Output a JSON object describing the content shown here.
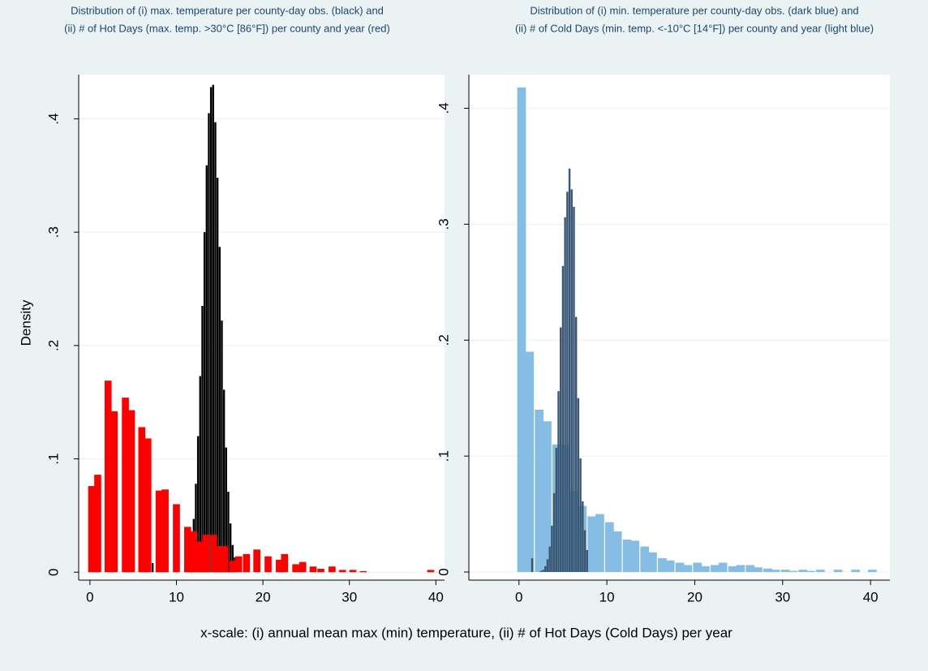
{
  "chart_data": [
    {
      "type": "bar",
      "title": "Distribution of (i) max. temperature per county-day obs. (black) and",
      "subtitle": "(ii) # of Hot Days (max. temp. >30°C [86°F]) per county and year (red)",
      "ylabel": "Density",
      "xlim": [
        -1.3,
        41.0
      ],
      "ylim": [
        -0.007,
        0.439
      ],
      "xticks": [
        0,
        10,
        20,
        30,
        40
      ],
      "yticks": [
        0,
        {
          "value": 0.1,
          "label": ".1"
        },
        {
          "value": 0.2,
          "label": ".2"
        },
        {
          "value": 0.3,
          "label": ".3"
        },
        {
          "value": 0.4,
          "label": ".4"
        }
      ],
      "grid": true,
      "series": [
        {
          "color": "#000000",
          "x": [
            7.25,
            11.0,
            11.25,
            11.5,
            11.75,
            12.0,
            12.25,
            12.5,
            12.75,
            13.0,
            13.25,
            13.5,
            13.75,
            14.0,
            14.25,
            14.5,
            14.75,
            15.0,
            15.25,
            15.5,
            15.75,
            16.0,
            16.25,
            16.5,
            16.75
          ],
          "values": [
            0.008,
            0.004,
            0.007,
            0.015,
            0.027,
            0.047,
            0.078,
            0.12,
            0.173,
            0.235,
            0.3,
            0.359,
            0.405,
            0.428,
            0.43,
            0.397,
            0.348,
            0.287,
            0.222,
            0.161,
            0.11,
            0.071,
            0.043,
            0.024,
            0.013
          ]
        },
        {
          "color": "#ff0000",
          "x": [
            0.2,
            0.9,
            2.1,
            2.8,
            4.1,
            4.8,
            6.0,
            6.7,
            8.0,
            8.7,
            10.0,
            11.3,
            12.0,
            12.8,
            13.4,
            14.3,
            15.0,
            15.6,
            16.5,
            17.2,
            18.1,
            19.3,
            20.6,
            21.9,
            22.5,
            23.8,
            24.6,
            25.8,
            26.7,
            28.0,
            29.2,
            30.4,
            31.6,
            39.4
          ],
          "values": [
            0.076,
            0.086,
            0.169,
            0.142,
            0.154,
            0.143,
            0.128,
            0.118,
            0.072,
            0.073,
            0.06,
            0.04,
            0.036,
            0.027,
            0.033,
            0.033,
            0.023,
            0.023,
            0.01,
            0.014,
            0.016,
            0.02,
            0.014,
            0.011,
            0.016,
            0.007,
            0.009,
            0.005,
            0.003,
            0.005,
            0.002,
            0.002,
            0.001,
            0.002
          ]
        }
      ]
    },
    {
      "type": "bar",
      "title": "Distribution of (i) min. temperature per county-day obs. (dark blue) and",
      "subtitle": "(ii) # of Cold Days (min. temp. <-10°C [14°F]) per county and year (light blue)",
      "xlim": [
        -5.7,
        42.2
      ],
      "ylim": [
        -0.007,
        0.429
      ],
      "xticks": [
        0,
        10,
        20,
        30,
        40
      ],
      "yticks": [
        0,
        {
          "value": 0.1,
          "label": ".1"
        },
        {
          "value": 0.2,
          "label": ".2"
        },
        {
          "value": 0.3,
          "label": ".3"
        },
        {
          "value": 0.4,
          "label": ".4"
        }
      ],
      "grid": true,
      "series": [
        {
          "color": "#86bde5",
          "x": [
            0.3,
            1.2,
            2.3,
            3.2,
            4.3,
            5.2,
            6.3,
            7.2,
            8.3,
            9.2,
            10.3,
            11.2,
            12.3,
            13.2,
            14.3,
            15.2,
            16.3,
            17.2,
            18.3,
            19.2,
            20.3,
            21.2,
            22.3,
            23.2,
            24.3,
            25.2,
            26.3,
            27.2,
            28.3,
            29.2,
            30.3,
            31.2,
            32.3,
            33.2,
            34.3,
            36.3,
            38.3,
            40.2
          ],
          "values": [
            0.418,
            0.19,
            0.14,
            0.13,
            0.11,
            0.11,
            0.07,
            0.057,
            0.048,
            0.05,
            0.043,
            0.035,
            0.028,
            0.027,
            0.022,
            0.017,
            0.012,
            0.01,
            0.008,
            0.006,
            0.008,
            0.005,
            0.006,
            0.008,
            0.005,
            0.006,
            0.006,
            0.004,
            0.003,
            0.002,
            0.002,
            0.001,
            0.002,
            0.001,
            0.002,
            0.002,
            0.002,
            0.002
          ]
        },
        {
          "color": "#3a5876",
          "x": [
            1.5,
            2.5,
            2.75,
            3.0,
            3.25,
            3.5,
            3.75,
            4.0,
            4.25,
            4.5,
            4.75,
            5.0,
            5.25,
            5.5,
            5.75,
            6.0,
            6.25,
            6.5,
            6.75,
            7.0,
            7.25,
            7.5,
            7.75
          ],
          "values": [
            0.012,
            0.001,
            0.002,
            0.005,
            0.011,
            0.022,
            0.04,
            0.068,
            0.107,
            0.156,
            0.211,
            0.264,
            0.306,
            0.328,
            0.348,
            0.33,
            0.315,
            0.22,
            0.15,
            0.098,
            0.061,
            0.036,
            0.019
          ]
        }
      ]
    }
  ],
  "xlabel": "x-scale: (i) annual mean max (min) temperature, (ii) # of Hot Days (Cold Days) per year"
}
